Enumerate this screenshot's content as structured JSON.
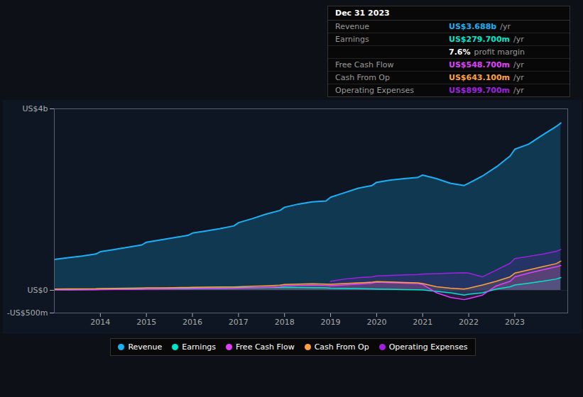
{
  "chart_data": {
    "type": "area",
    "x": [
      2013.0,
      2013.3,
      2013.6,
      2013.9,
      2014.0,
      2014.3,
      2014.6,
      2014.9,
      2015.0,
      2015.3,
      2015.6,
      2015.9,
      2016.0,
      2016.3,
      2016.6,
      2016.9,
      2017.0,
      2017.3,
      2017.6,
      2017.9,
      2018.0,
      2018.3,
      2018.6,
      2018.9,
      2019.0,
      2019.3,
      2019.6,
      2019.9,
      2020.0,
      2020.3,
      2020.6,
      2020.9,
      2021.0,
      2021.3,
      2021.6,
      2021.9,
      2022.0,
      2022.3,
      2022.6,
      2022.9,
      2023.0,
      2023.3,
      2023.6,
      2023.9,
      2024.0
    ],
    "series": [
      {
        "name": "Revenue",
        "color": "#1ab0f5",
        "values": [
          680,
          720,
          755,
          800,
          850,
          900,
          950,
          1000,
          1060,
          1110,
          1160,
          1210,
          1260,
          1310,
          1360,
          1420,
          1490,
          1580,
          1680,
          1760,
          1830,
          1900,
          1950,
          1970,
          2050,
          2150,
          2250,
          2310,
          2380,
          2430,
          2460,
          2490,
          2540,
          2460,
          2360,
          2310,
          2360,
          2520,
          2720,
          2960,
          3110,
          3220,
          3420,
          3610,
          3688
        ]
      },
      {
        "name": "Earnings",
        "color": "#00e5cc",
        "values": [
          18,
          14,
          16,
          20,
          25,
          27,
          30,
          33,
          36,
          38,
          41,
          43,
          47,
          50,
          52,
          54,
          57,
          59,
          61,
          64,
          67,
          64,
          59,
          53,
          48,
          43,
          38,
          32,
          28,
          22,
          17,
          12,
          8,
          -25,
          -55,
          -105,
          -85,
          -55,
          28,
          78,
          118,
          158,
          198,
          248,
          280
        ]
      },
      {
        "name": "Free Cash Flow",
        "color": "#e040fb",
        "values": [
          8,
          6,
          10,
          13,
          16,
          18,
          20,
          23,
          26,
          28,
          30,
          33,
          36,
          38,
          41,
          43,
          46,
          53,
          63,
          78,
          98,
          108,
          113,
          108,
          103,
          118,
          138,
          158,
          178,
          168,
          158,
          148,
          128,
          -55,
          -155,
          -205,
          -185,
          -105,
          98,
          198,
          298,
          378,
          448,
          518,
          548
        ]
      },
      {
        "name": "Cash From Op",
        "color": "#ffa040",
        "values": [
          28,
          30,
          33,
          36,
          40,
          43,
          46,
          50,
          53,
          56,
          60,
          63,
          66,
          70,
          73,
          76,
          80,
          88,
          98,
          113,
          128,
          138,
          143,
          138,
          133,
          148,
          163,
          178,
          193,
          183,
          173,
          163,
          148,
          78,
          48,
          28,
          48,
          118,
          198,
          298,
          378,
          448,
          518,
          588,
          643
        ]
      },
      {
        "name": "Operating Expenses",
        "color": "#a020e0",
        "values": [
          null,
          null,
          null,
          null,
          null,
          null,
          null,
          null,
          null,
          null,
          null,
          null,
          null,
          null,
          null,
          null,
          null,
          null,
          null,
          null,
          null,
          null,
          null,
          null,
          198,
          248,
          278,
          298,
          318,
          328,
          338,
          348,
          358,
          368,
          378,
          388,
          378,
          298,
          448,
          598,
          698,
          748,
          798,
          858,
          900
        ]
      }
    ],
    "xlim": [
      2013.0,
      2024.15
    ],
    "xticks": [
      2014,
      2015,
      2016,
      2017,
      2018,
      2019,
      2020,
      2021,
      2022,
      2023
    ],
    "ylim": [
      -500,
      4000
    ],
    "yticks": [
      {
        "value": -500,
        "label": "-US$500m"
      },
      {
        "value": 0,
        "label": "US$0"
      },
      {
        "value": 4000,
        "label": "US$4b"
      }
    ],
    "grid": true,
    "legend": "bottom",
    "annotations": {
      "date": "Dec 31 2023",
      "rows": [
        {
          "label": "Revenue",
          "value": "US$3.688b",
          "suffix": "/yr",
          "color": "#1ab0f5"
        },
        {
          "label": "Earnings",
          "value": "US$279.700m",
          "suffix": "/yr",
          "color": "#00e5cc"
        },
        {
          "value": "7.6%",
          "suffix": "profit margin",
          "color": "#ffffff"
        },
        {
          "label": "Free Cash Flow",
          "value": "US$548.700m",
          "suffix": "/yr",
          "color": "#e040fb"
        },
        {
          "label": "Cash From Op",
          "value": "US$643.100m",
          "suffix": "/yr",
          "color": "#ffa040"
        },
        {
          "label": "Operating Expenses",
          "value": "US$899.700m",
          "suffix": "/yr",
          "color": "#a020e0"
        }
      ]
    }
  }
}
